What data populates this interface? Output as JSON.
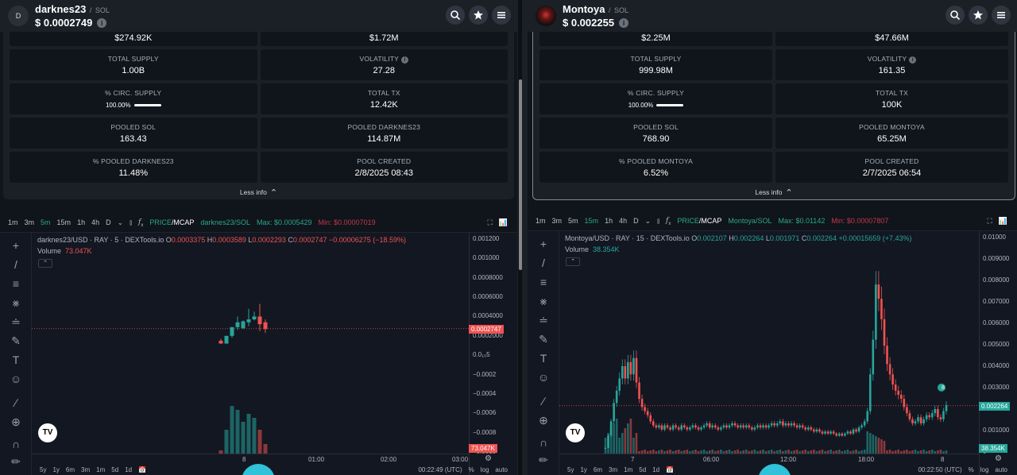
{
  "left": {
    "avatar_letter": "D",
    "token_name": "darknes23",
    "chain": "SOL",
    "price": "$ 0.0002749",
    "top_row": [
      "$274.92K",
      "$1.72M"
    ],
    "stats": [
      {
        "label": "TOTAL SUPPLY",
        "value": "1.00B"
      },
      {
        "label": "VOLATILITY",
        "value": "27.28",
        "info": true
      },
      {
        "label": "% CIRC. SUPPLY",
        "value": "100.00%",
        "bar": true
      },
      {
        "label": "TOTAL TX",
        "value": "12.42K"
      },
      {
        "label": "POOLED SOL",
        "value": "163.43"
      },
      {
        "label": "POOLED DARKNES23",
        "value": "114.87M"
      },
      {
        "label": "% POOLED DARKNES23",
        "value": "11.48%"
      },
      {
        "label": "POOL CREATED",
        "value": "2/8/2025 08:43"
      }
    ],
    "less_info": "Less info",
    "intervals": [
      "1m",
      "3m",
      "5m",
      "15m",
      "1h",
      "4h",
      "D"
    ],
    "active_interval": "5m",
    "price_word": "PRICE",
    "mcap_word": "MCAP",
    "pair_label": "darknes23/SOL",
    "max_label": "Max: $0.0005429",
    "min_label": "Min: $0.00007019",
    "legend_title": "darknes23/USD · RAY · 5 · DEXTools.io",
    "ohlc": {
      "o": "0.0003375",
      "h": "0.0003589",
      "l": "0.0002293",
      "c": "0.0002747",
      "chg": "−0.00006275 (−18.59%)"
    },
    "volume_label": "Volume",
    "volume_value": "73.047K",
    "price_ticks": [
      "0.001200",
      "0.001000",
      "0.0008000",
      "0.0006000",
      "0.0004000",
      "0.0002000",
      "0.0₁₀5",
      "−0.0002",
      "−0.0004",
      "−0.0006",
      "−0.0008",
      "−0.0010"
    ],
    "current_price_tag": "0.0002747",
    "volume_tag": "73.047K",
    "time_ticks": [
      "8",
      "01:00",
      "02:00",
      "03:00"
    ],
    "ranges": [
      "5y",
      "1y",
      "6m",
      "3m",
      "1m",
      "5d",
      "1d"
    ],
    "clock": "00:22:49 (UTC)",
    "scale_opts": [
      "%",
      "log",
      "auto"
    ],
    "chart_data": {
      "type": "candlestick",
      "candles": [
        {
          "o": 0.00015,
          "h": 0.00017,
          "l": 0.00012,
          "c": 0.00012
        },
        {
          "o": 0.00012,
          "h": 0.0002,
          "l": 0.00012,
          "c": 0.0002
        },
        {
          "o": 0.0002,
          "h": 0.00029,
          "l": 0.00018,
          "c": 0.00029
        },
        {
          "o": 0.00029,
          "h": 0.0004,
          "l": 0.00026,
          "c": 0.00034
        },
        {
          "o": 0.00028,
          "h": 0.00036,
          "l": 0.00027,
          "c": 0.00035
        },
        {
          "o": 0.00034,
          "h": 0.00048,
          "l": 0.0003,
          "c": 0.00037
        },
        {
          "o": 0.00037,
          "h": 0.00045,
          "l": 0.00036,
          "c": 0.0004
        },
        {
          "o": 0.0004,
          "h": 0.00053,
          "l": 0.00025,
          "c": 0.00032
        },
        {
          "o": 0.00034,
          "h": 0.00037,
          "l": 0.00023,
          "c": 0.00027
        }
      ],
      "volumes": [
        4,
        30,
        60,
        55,
        40,
        50,
        45,
        30,
        12
      ],
      "ylim": [
        -0.001,
        0.0012
      ],
      "current_price": 0.0002747
    }
  },
  "right": {
    "token_name": "Montoya",
    "chain": "SOL",
    "price": "$ 0.002255",
    "top_row": [
      "$2.25M",
      "$47.66M"
    ],
    "stats": [
      {
        "label": "TOTAL SUPPLY",
        "value": "999.98M"
      },
      {
        "label": "VOLATILITY",
        "value": "161.35",
        "info": true
      },
      {
        "label": "% CIRC. SUPPLY",
        "value": "100.00%",
        "bar": true
      },
      {
        "label": "TOTAL TX",
        "value": "100K"
      },
      {
        "label": "POOLED SOL",
        "value": "768.90"
      },
      {
        "label": "POOLED MONTOYA",
        "value": "65.25M"
      },
      {
        "label": "% POOLED MONTOYA",
        "value": "6.52%"
      },
      {
        "label": "POOL CREATED",
        "value": "2/7/2025 06:54"
      }
    ],
    "less_info": "Less info",
    "intervals": [
      "1m",
      "3m",
      "5m",
      "15m",
      "1h",
      "4h",
      "D"
    ],
    "active_interval": "15m",
    "price_word": "PRICE",
    "mcap_word": "MCAP",
    "pair_label": "Montoya/SOL",
    "max_label": "Max: $0.01142",
    "min_label": "Min: $0.00007807",
    "legend_title": "Montoya/USD · RAY · 15 · DEXTools.io",
    "ohlc": {
      "o": "0.002107",
      "h": "0.002264",
      "l": "0.001971",
      "c": "0.002264",
      "chg": "+0.00015659 (+7.43%)"
    },
    "volume_label": "Volume",
    "volume_value": "38.354K",
    "price_ticks": [
      "0.01000",
      "0.009000",
      "0.008000",
      "0.007000",
      "0.006000",
      "0.005000",
      "0.004000",
      "0.003000",
      "0.002000",
      "0.001000",
      "0"
    ],
    "current_price_tag": "0.002264",
    "volume_tag": "38.354K",
    "time_ticks": [
      "7",
      "06:00",
      "12:00",
      "18:00",
      "8"
    ],
    "ranges": [
      "5y",
      "1y",
      "6m",
      "3m",
      "1m",
      "5d",
      "1d"
    ],
    "clock": "00:22:50 (UTC)",
    "scale_opts": [
      "%",
      "log",
      "auto"
    ],
    "marker_label": "8",
    "chart_data": {
      "type": "candlestick",
      "closes": [
        0.0002,
        0.0008,
        0.0015,
        0.0024,
        0.003,
        0.0036,
        0.0042,
        0.0036,
        0.0044,
        0.0038,
        0.0046,
        0.0034,
        0.0026,
        0.0022,
        0.002,
        0.0018,
        0.0015,
        0.0013,
        0.0012,
        0.0013,
        0.0011,
        0.0013,
        0.0012,
        0.0011,
        0.0013,
        0.0012,
        0.0011,
        0.0013,
        0.0012,
        0.0011,
        0.0012,
        0.0013,
        0.0012,
        0.0011,
        0.0012,
        0.0013,
        0.0014,
        0.0012,
        0.0013,
        0.0012,
        0.0011,
        0.0012,
        0.0013,
        0.0012,
        0.0013,
        0.0014,
        0.0013,
        0.0012,
        0.0013,
        0.0012,
        0.0013,
        0.0012,
        0.0011,
        0.0012,
        0.0013,
        0.0012,
        0.0013,
        0.0012,
        0.0013,
        0.0014,
        0.0013,
        0.0014,
        0.0015,
        0.0013,
        0.0014,
        0.0013,
        0.0014,
        0.0013,
        0.0012,
        0.0013,
        0.0012,
        0.0011,
        0.0012,
        0.0011,
        0.001,
        0.0011,
        0.001,
        0.0009,
        0.001,
        0.0009,
        0.001,
        0.0009,
        0.0008,
        0.0009,
        0.0008,
        0.0009,
        0.001,
        0.0009,
        0.0011,
        0.001,
        0.0012,
        0.0013,
        0.0015,
        0.002,
        0.0038,
        0.0055,
        0.0082,
        0.0075,
        0.0065,
        0.0052,
        0.0043,
        0.0038,
        0.0033,
        0.003,
        0.0028,
        0.0026,
        0.0022,
        0.0019,
        0.0016,
        0.0014,
        0.0015,
        0.0017,
        0.0014,
        0.0016,
        0.0018,
        0.0017,
        0.0019,
        0.0021,
        0.0017,
        0.0016,
        0.002,
        0.0023
      ],
      "ylim": [
        0,
        0.0105
      ],
      "current_price": 0.002264
    }
  }
}
